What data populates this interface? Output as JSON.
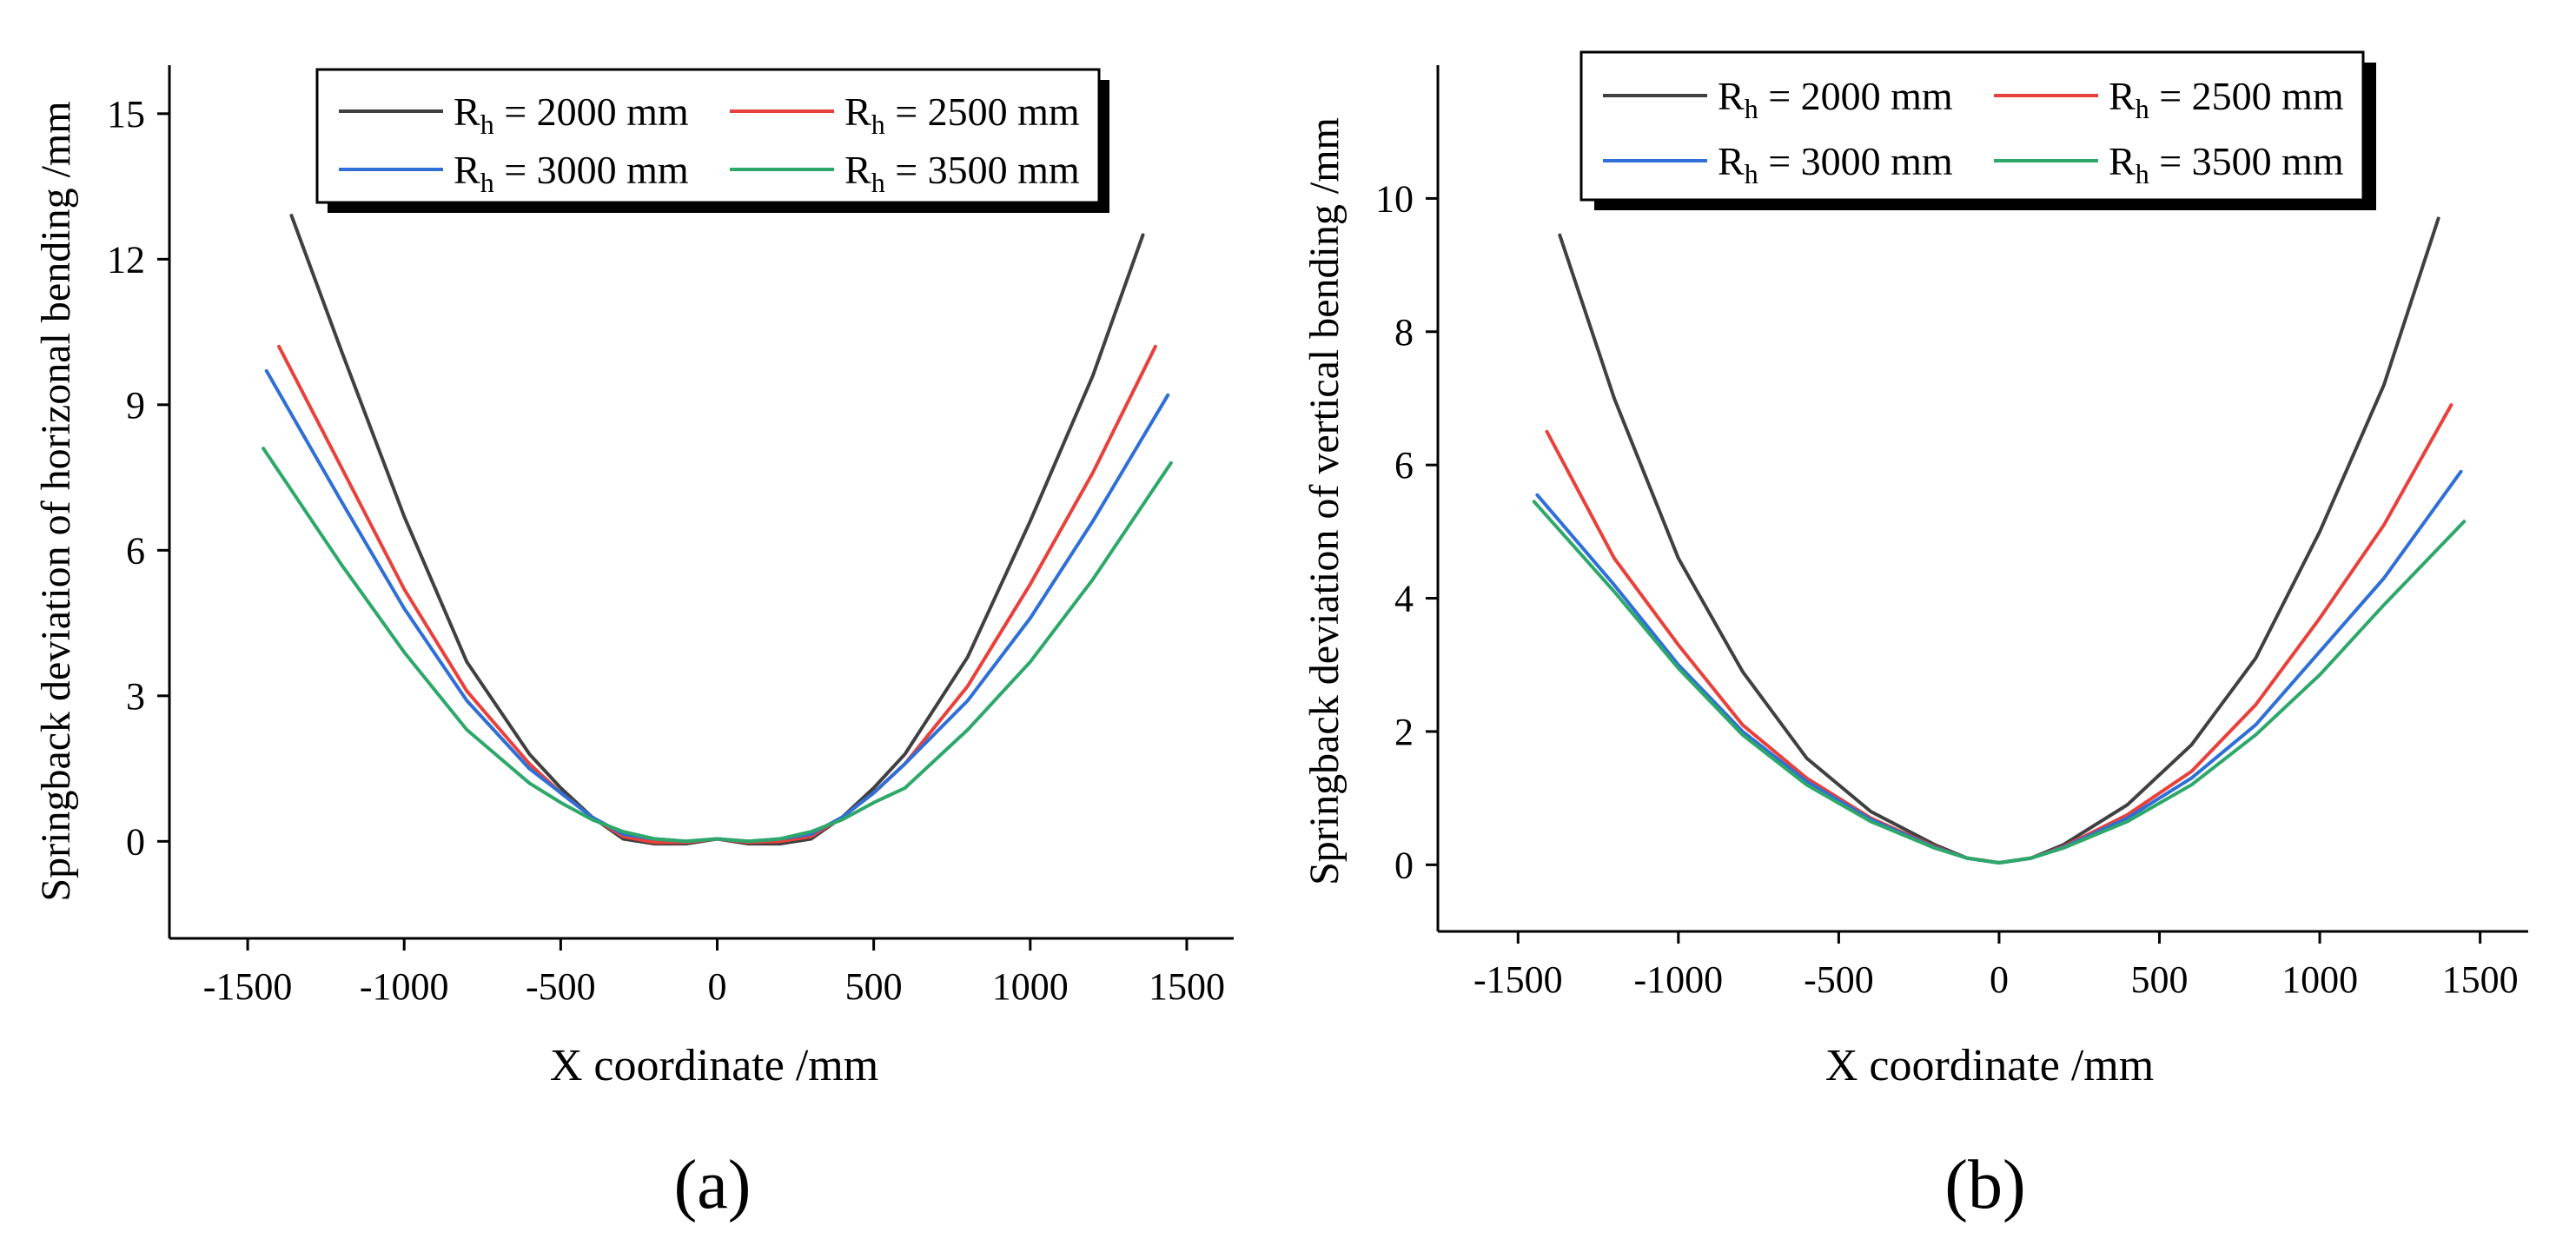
{
  "chart_data": [
    {
      "type": "line",
      "panel_label": "(a)",
      "xlabel": "X coordinate /mm",
      "ylabel": "Springback deviation of horizonal bending /mm",
      "xlim": [
        -1750,
        1650
      ],
      "ylim": [
        -2,
        16
      ],
      "xticks": [
        -1500,
        -1000,
        -500,
        0,
        500,
        1000,
        1500
      ],
      "yticks": [
        0,
        3,
        6,
        9,
        12,
        15
      ],
      "legend": "top-center",
      "series": [
        {
          "name": "2000 mm",
          "color": "#404040",
          "x": [
            -1360,
            -1200,
            -1000,
            -800,
            -600,
            -500,
            -400,
            -300,
            -200,
            -100,
            0,
            100,
            200,
            300,
            400,
            500,
            600,
            800,
            1000,
            1200,
            1360
          ],
          "y": [
            12.9,
            10.1,
            6.7,
            3.7,
            1.8,
            1.1,
            0.5,
            0.05,
            -0.05,
            -0.05,
            0.05,
            -0.05,
            -0.05,
            0.05,
            0.5,
            1.1,
            1.8,
            3.8,
            6.6,
            9.6,
            12.5
          ]
        },
        {
          "name": "2500 mm",
          "color": "#e8413c",
          "x": [
            -1400,
            -1200,
            -1000,
            -800,
            -600,
            -500,
            -400,
            -300,
            -200,
            -100,
            0,
            100,
            200,
            300,
            400,
            500,
            600,
            800,
            1000,
            1200,
            1400
          ],
          "y": [
            10.2,
            7.7,
            5.2,
            3.1,
            1.6,
            1.0,
            0.5,
            0.1,
            -0.02,
            -0.02,
            0.05,
            -0.02,
            0.0,
            0.1,
            0.5,
            1.0,
            1.6,
            3.2,
            5.3,
            7.6,
            10.2
          ]
        },
        {
          "name": "3000 mm",
          "color": "#2f6fd6",
          "x": [
            -1440,
            -1200,
            -1000,
            -800,
            -600,
            -500,
            -400,
            -300,
            -200,
            -100,
            0,
            100,
            200,
            300,
            400,
            500,
            600,
            800,
            1000,
            1200,
            1440
          ],
          "y": [
            9.7,
            7.0,
            4.8,
            2.9,
            1.5,
            1.0,
            0.5,
            0.15,
            0.05,
            0.0,
            0.05,
            0.0,
            0.05,
            0.15,
            0.5,
            1.0,
            1.6,
            2.9,
            4.6,
            6.6,
            9.2
          ]
        },
        {
          "name": "3500 mm",
          "color": "#2ea86a",
          "x": [
            -1450,
            -1200,
            -1000,
            -800,
            -600,
            -500,
            -400,
            -300,
            -200,
            -100,
            0,
            100,
            200,
            300,
            400,
            500,
            600,
            800,
            1000,
            1200,
            1450
          ],
          "y": [
            8.1,
            5.7,
            3.9,
            2.3,
            1.2,
            0.8,
            0.45,
            0.2,
            0.05,
            0.0,
            0.05,
            0.0,
            0.05,
            0.2,
            0.45,
            0.8,
            1.1,
            2.3,
            3.7,
            5.4,
            7.8
          ]
        }
      ]
    },
    {
      "type": "line",
      "panel_label": "(b)",
      "xlabel": "X coordinate /mm",
      "ylabel": "Springback deviation of vertical bending /mm",
      "xlim": [
        -1750,
        1650
      ],
      "ylim": [
        -1,
        12
      ],
      "xticks": [
        -1500,
        -1000,
        -500,
        0,
        500,
        1000,
        1500
      ],
      "yticks": [
        0,
        2,
        4,
        6,
        8,
        10
      ],
      "legend": "top-center",
      "series": [
        {
          "name": "2000 mm",
          "color": "#404040",
          "x": [
            -1370,
            -1200,
            -1000,
            -800,
            -600,
            -400,
            -200,
            -100,
            0,
            100,
            200,
            400,
            600,
            800,
            1000,
            1200,
            1370
          ],
          "y": [
            9.45,
            7.0,
            4.6,
            2.9,
            1.6,
            0.8,
            0.3,
            0.1,
            0.03,
            0.1,
            0.3,
            0.9,
            1.8,
            3.1,
            5.0,
            7.2,
            9.7
          ]
        },
        {
          "name": "2500 mm",
          "color": "#e8413c",
          "x": [
            -1410,
            -1200,
            -1000,
            -800,
            -600,
            -400,
            -200,
            -100,
            0,
            100,
            200,
            400,
            600,
            800,
            1000,
            1200,
            1410
          ],
          "y": [
            6.5,
            4.6,
            3.3,
            2.1,
            1.3,
            0.7,
            0.27,
            0.1,
            0.03,
            0.1,
            0.27,
            0.75,
            1.4,
            2.4,
            3.7,
            5.1,
            6.9
          ]
        },
        {
          "name": "3000 mm",
          "color": "#2f6fd6",
          "x": [
            -1440,
            -1200,
            -1000,
            -800,
            -600,
            -400,
            -200,
            -100,
            0,
            100,
            200,
            400,
            600,
            800,
            1000,
            1200,
            1440
          ],
          "y": [
            5.55,
            4.2,
            3.0,
            2.0,
            1.25,
            0.68,
            0.26,
            0.1,
            0.03,
            0.1,
            0.26,
            0.7,
            1.3,
            2.1,
            3.2,
            4.3,
            5.9
          ]
        },
        {
          "name": "3500 mm",
          "color": "#2ea86a",
          "x": [
            -1450,
            -1200,
            -1000,
            -800,
            -600,
            -400,
            -200,
            -100,
            0,
            100,
            200,
            400,
            600,
            800,
            1000,
            1200,
            1450
          ],
          "y": [
            5.45,
            4.1,
            2.95,
            1.95,
            1.2,
            0.65,
            0.25,
            0.1,
            0.03,
            0.1,
            0.25,
            0.65,
            1.2,
            1.95,
            2.85,
            3.9,
            5.15
          ]
        }
      ]
    }
  ]
}
